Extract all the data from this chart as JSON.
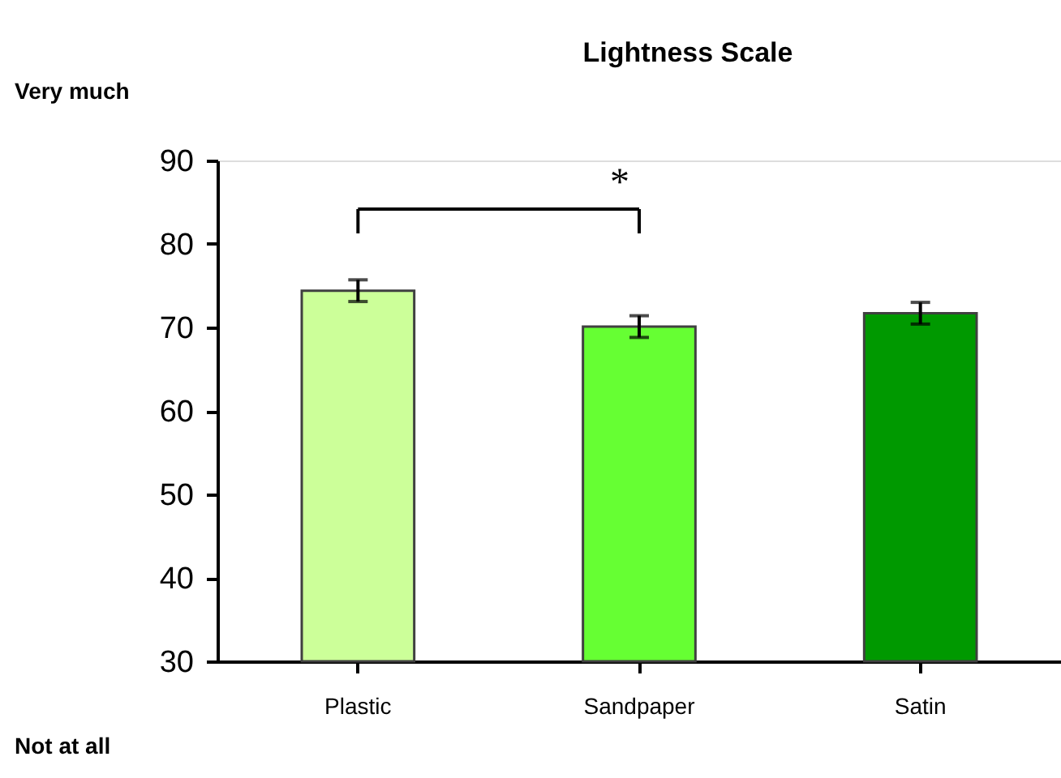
{
  "chart_data": {
    "type": "bar",
    "title": "Lightness Scale",
    "categories": [
      "Plastic",
      "Sandpaper",
      "Satin"
    ],
    "values": [
      74.4,
      70.1,
      71.7
    ],
    "errors": [
      1.3,
      1.3,
      1.3
    ],
    "colors": [
      "#ccff99",
      "#66ff33",
      "#009900"
    ],
    "ylim": [
      30,
      90
    ],
    "yticks": [
      30,
      40,
      50,
      60,
      70,
      80,
      90
    ],
    "grid": false,
    "annotations": [
      "Very much",
      "Not at all",
      "*"
    ]
  }
}
